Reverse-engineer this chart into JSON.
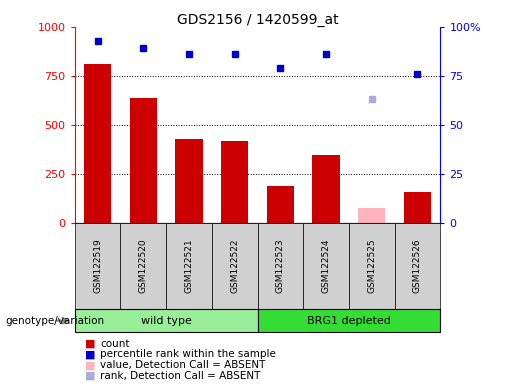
{
  "title": "GDS2156 / 1420599_at",
  "samples": [
    "GSM122519",
    "GSM122520",
    "GSM122521",
    "GSM122522",
    "GSM122523",
    "GSM122524",
    "GSM122525",
    "GSM122526"
  ],
  "count_values": [
    810,
    635,
    430,
    415,
    185,
    345,
    null,
    155
  ],
  "count_absent_values": [
    null,
    null,
    null,
    null,
    null,
    null,
    75,
    null
  ],
  "percentile_values": [
    93,
    89,
    86,
    86,
    79,
    86,
    null,
    76
  ],
  "percentile_absent_values": [
    null,
    null,
    null,
    null,
    null,
    null,
    63,
    null
  ],
  "bar_color_present": "#cc0000",
  "bar_color_absent": "#ffb3ba",
  "dot_color_present": "#0000cc",
  "dot_color_absent": "#aaaadd",
  "ylim_left": [
    0,
    1000
  ],
  "ylim_right": [
    0,
    100
  ],
  "yticks_left": [
    0,
    250,
    500,
    750,
    1000
  ],
  "ytick_labels_left": [
    "0",
    "250",
    "500",
    "750",
    "1000"
  ],
  "yticks_right": [
    0,
    25,
    50,
    75,
    100
  ],
  "ytick_labels_right": [
    "0",
    "25",
    "50",
    "75",
    "100%"
  ],
  "genotype_label": "genotype/variation",
  "wild_type_label": "wild type",
  "brg1_label": "BRG1 depleted",
  "wild_type_bg": "#99ee99",
  "brg1_bg": "#33dd33",
  "sample_box_bg": "#d0d0d0",
  "legend_labels": [
    "count",
    "percentile rank within the sample",
    "value, Detection Call = ABSENT",
    "rank, Detection Call = ABSENT"
  ],
  "legend_colors": [
    "#cc0000",
    "#0000cc",
    "#ffb3ba",
    "#aaaadd"
  ]
}
